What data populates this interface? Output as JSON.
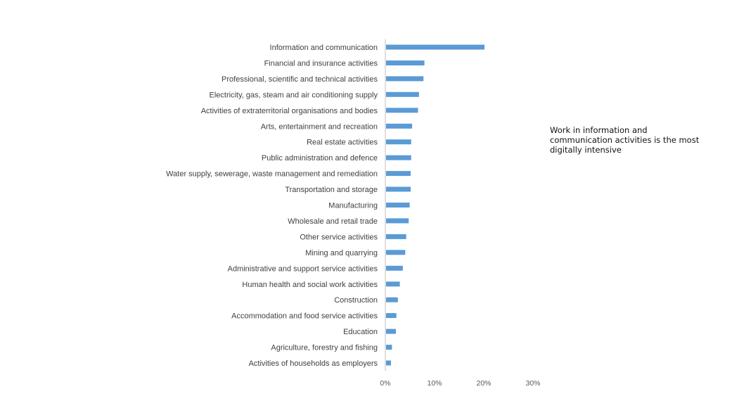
{
  "chart_data": {
    "type": "bar",
    "orientation": "horizontal",
    "categories": [
      "Information and communication",
      "Financial and insurance activities",
      "Professional, scientific and technical activities",
      "Electricity, gas, steam and air conditioning supply",
      "Activities of extraterritorial organisations and bodies",
      "Arts, entertainment and recreation",
      "Real estate activities",
      "Public administration and defence",
      "Water supply, sewerage, waste management and remediation",
      "Transportation and storage",
      "Manufacturing",
      "Wholesale and retail trade",
      "Other service activities",
      "Mining and quarrying",
      "Administrative and support service activities",
      "Human health and social work activities",
      "Construction",
      "Accommodation and food service activities",
      "Education",
      "Agriculture, forestry and fishing",
      "Activities of households as employers"
    ],
    "values": [
      20.0,
      7.8,
      7.6,
      6.7,
      6.5,
      5.3,
      5.1,
      5.1,
      5.0,
      5.0,
      4.8,
      4.6,
      4.1,
      3.9,
      3.4,
      2.8,
      2.4,
      2.1,
      2.0,
      1.2,
      1.0
    ],
    "unit": "%",
    "xlim": [
      0,
      30
    ],
    "xticks": [
      "0%",
      "10%",
      "20%",
      "30%"
    ],
    "title": "",
    "xlabel": "",
    "ylabel": "",
    "grid": false,
    "legend": "none",
    "bar_color": "#5b9bd5",
    "axis_color": "#bfbfbf",
    "annotation": "Work in information and\ncommunication activities is the most\ndigitally intensive"
  }
}
